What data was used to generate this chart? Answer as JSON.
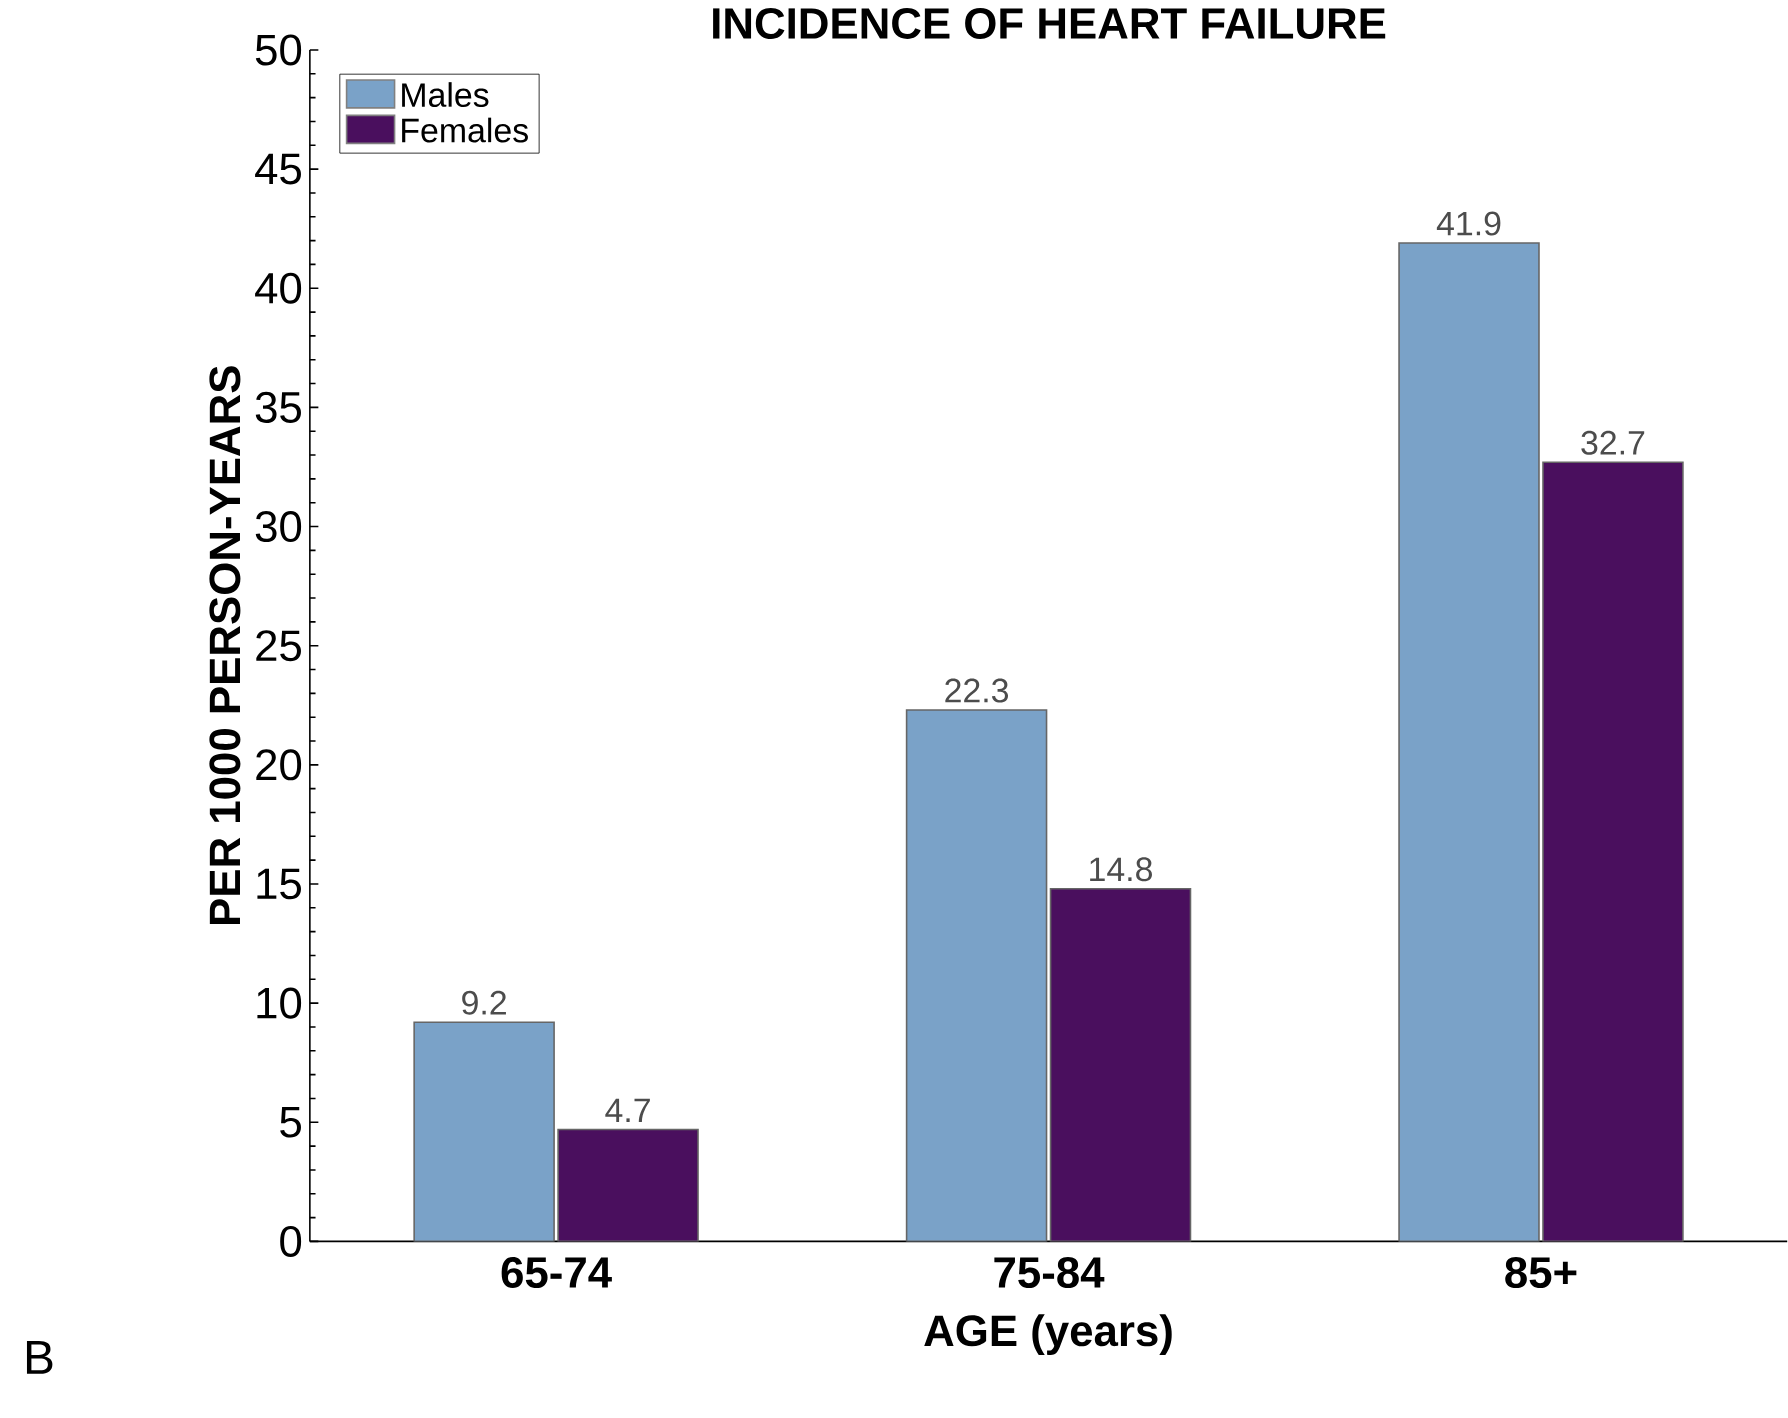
{
  "chart_data": {
    "type": "bar",
    "title": "INCIDENCE OF HEART FAILURE",
    "xlabel": "AGE (years)",
    "ylabel": "PER 1000 PERSON-YEARS",
    "categories": [
      "65-74",
      "75-84",
      "85+"
    ],
    "series": [
      {
        "name": "Males",
        "color": "#7aa2c8",
        "values": [
          9.2,
          22.3,
          41.9
        ]
      },
      {
        "name": "Females",
        "color": "#4a0f5e",
        "values": [
          4.7,
          14.8,
          32.7
        ]
      }
    ],
    "ylim": [
      0,
      50
    ],
    "yticks": [
      0,
      5,
      10,
      15,
      20,
      25,
      30,
      35,
      40,
      45,
      50
    ],
    "data_labels": true,
    "legend": "top left",
    "annotations": [
      "B"
    ]
  }
}
